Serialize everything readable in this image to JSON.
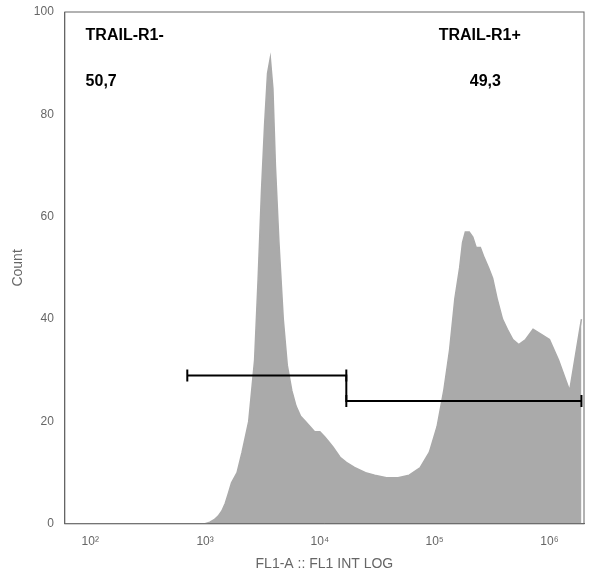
{
  "chart_data": {
    "type": "area",
    "xlabel": "FL1-A :: FL1 INT LOG",
    "ylabel": "Count",
    "log": "x",
    "grid": false,
    "xlim": [
      60,
      2000000
    ],
    "xticks": [
      {
        "value": 100,
        "label": "10²"
      },
      {
        "value": 1000,
        "label": "10³"
      },
      {
        "value": 10000,
        "label": "10⁴"
      },
      {
        "value": 100000,
        "label": "10⁵"
      },
      {
        "value": 1000000,
        "label": "10⁶"
      }
    ],
    "ylim": [
      0,
      100
    ],
    "yticks": [
      0,
      20,
      40,
      60,
      80,
      100
    ],
    "series": [
      {
        "type": "area",
        "color": "#aaaaaa",
        "x": [
          60,
          300,
          500,
          700,
          900,
          1000,
          1100,
          1200,
          1300,
          1400,
          1500,
          1600,
          1700,
          1900,
          2100,
          2400,
          2700,
          2900,
          3100,
          3300,
          3500,
          3700,
          3900,
          4100,
          4400,
          4800,
          5200,
          5700,
          6200,
          6800,
          7500,
          8200,
          9000,
          10000,
          11000,
          12000,
          13000,
          15000,
          17000,
          20000,
          25000,
          30000,
          38000,
          48000,
          60000,
          75000,
          90000,
          105000,
          120000,
          135000,
          150000,
          165000,
          175000,
          185000,
          200000,
          215000,
          230000,
          250000,
          270000,
          295000,
          320000,
          350000,
          390000,
          430000,
          480000,
          540000,
          620000,
          720000,
          850000,
          1000000,
          1200000,
          1500000,
          1900000
        ],
        "values": [
          0,
          0,
          0,
          0,
          0,
          0,
          0.3,
          0.8,
          1.5,
          2.5,
          4,
          6,
          8,
          10,
          14,
          20,
          32,
          48,
          65,
          78,
          88,
          91,
          85,
          70,
          55,
          40,
          31,
          26,
          23,
          21,
          20,
          19,
          18,
          18,
          17,
          16,
          15,
          13,
          12,
          11,
          10,
          9.5,
          9,
          9,
          9.5,
          11,
          14,
          19,
          26,
          34,
          44,
          50,
          55,
          57,
          57,
          56,
          54,
          54,
          52,
          50,
          48,
          44,
          40,
          38,
          36,
          35,
          36,
          38,
          37,
          36,
          32,
          26,
          40
        ]
      },
      {
        "type": "line",
        "color": "#000000",
        "marker": "line",
        "x": [
          700,
          17000,
          17000,
          1900000
        ],
        "values": [
          29,
          29,
          24,
          24
        ]
      }
    ],
    "annotations": [
      [
        "TRAIL-R1-",
        "50,7"
      ],
      [
        "TRAIL-R1+",
        "49,3"
      ]
    ]
  }
}
